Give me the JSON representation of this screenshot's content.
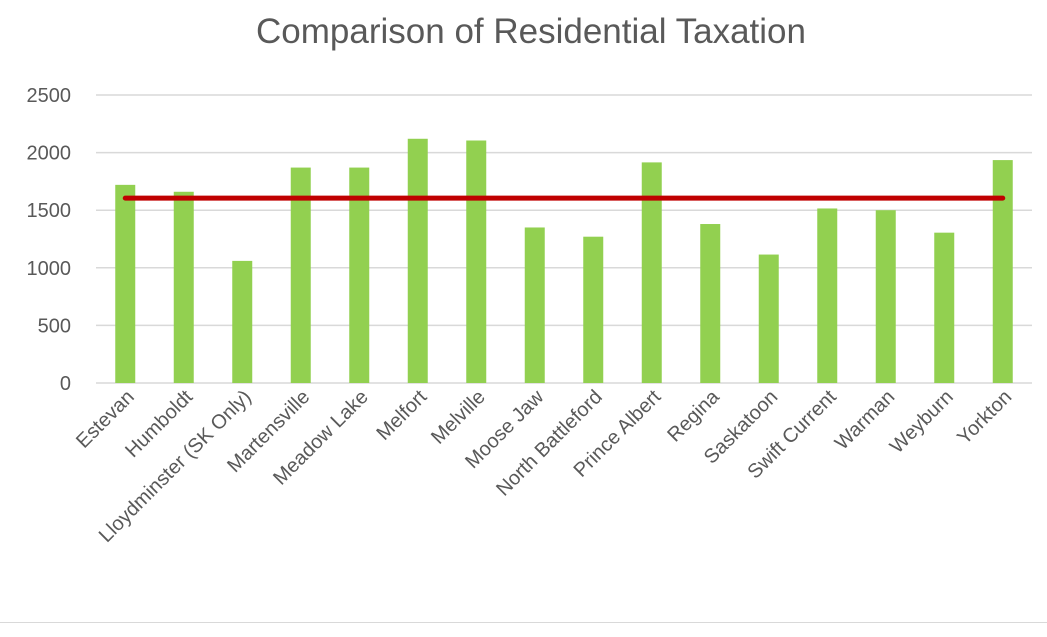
{
  "chart_data": {
    "type": "bar",
    "title": "Comparison of Residential Taxation",
    "categories": [
      "Estevan",
      "Humboldt",
      "Lloydminster (SK Only)",
      "Martensville",
      "Meadow Lake",
      "Melfort",
      "Melville",
      "Moose Jaw",
      "North Battleford",
      "Prince Albert",
      "Regina",
      "Saskatoon",
      "Swift Current",
      "Warman",
      "Weyburn",
      "Yorkton"
    ],
    "series": [
      {
        "values": [
          1720,
          1660,
          1060,
          1870,
          1870,
          2120,
          2105,
          1350,
          1270,
          1915,
          1380,
          1115,
          1515,
          1500,
          1305,
          1935
        ]
      }
    ],
    "reference_line": 1605,
    "ylim": [
      0,
      2500
    ],
    "yticks": [
      0,
      500,
      1000,
      1500,
      2000,
      2500
    ],
    "ytick_labels": [
      "0",
      "500",
      "1000",
      "1500",
      "2000",
      "2500"
    ],
    "xlabel": "",
    "ylabel": "",
    "grid": true,
    "legend": "none",
    "colors": {
      "bar": "#92d050",
      "reference_line": "#c00000",
      "grid": "#d9d9d9",
      "text": "#595959"
    }
  }
}
